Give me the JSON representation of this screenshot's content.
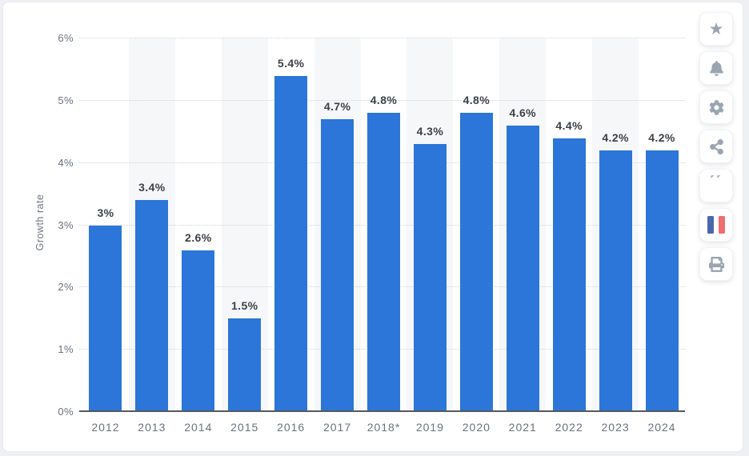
{
  "chart_data": {
    "type": "bar",
    "title": "",
    "categories": [
      "2012",
      "2013",
      "2014",
      "2015",
      "2016",
      "2017",
      "2018*",
      "2019",
      "2020",
      "2021",
      "2022",
      "2023",
      "2024"
    ],
    "values": [
      3,
      3.4,
      2.6,
      1.5,
      5.4,
      4.7,
      4.8,
      4.3,
      4.8,
      4.6,
      4.4,
      4.2,
      4.2
    ],
    "value_labels": [
      "3%",
      "3.4%",
      "2.6%",
      "1.5%",
      "5.4%",
      "4.7%",
      "4.8%",
      "4.3%",
      "4.8%",
      "4.6%",
      "4.4%",
      "4.2%",
      "4.2%"
    ],
    "xlabel": "",
    "ylabel": "Growth rate",
    "ylim": [
      0,
      6
    ],
    "ytick_labels": [
      "0%",
      "1%",
      "2%",
      "3%",
      "4%",
      "5%",
      "6%"
    ],
    "grid": "horizontal-dotted",
    "legend": null,
    "bar_color": "#2b76d8",
    "band_color": "#f6f7f9"
  },
  "sidebar": {
    "icon_color": "#9aa5b1",
    "flag_colors": {
      "blue": "#4a67ad",
      "red": "#ee6f6f"
    },
    "buttons": [
      {
        "name": "favorite-button",
        "icon": "star-icon"
      },
      {
        "name": "notification-button",
        "icon": "bell-icon"
      },
      {
        "name": "settings-button",
        "icon": "gear-icon"
      },
      {
        "name": "share-button",
        "icon": "share-icon"
      },
      {
        "name": "citation-button",
        "icon": "quote-icon"
      },
      {
        "name": "language-button",
        "icon": "french-flag-icon"
      },
      {
        "name": "print-button",
        "icon": "print-icon"
      }
    ]
  }
}
